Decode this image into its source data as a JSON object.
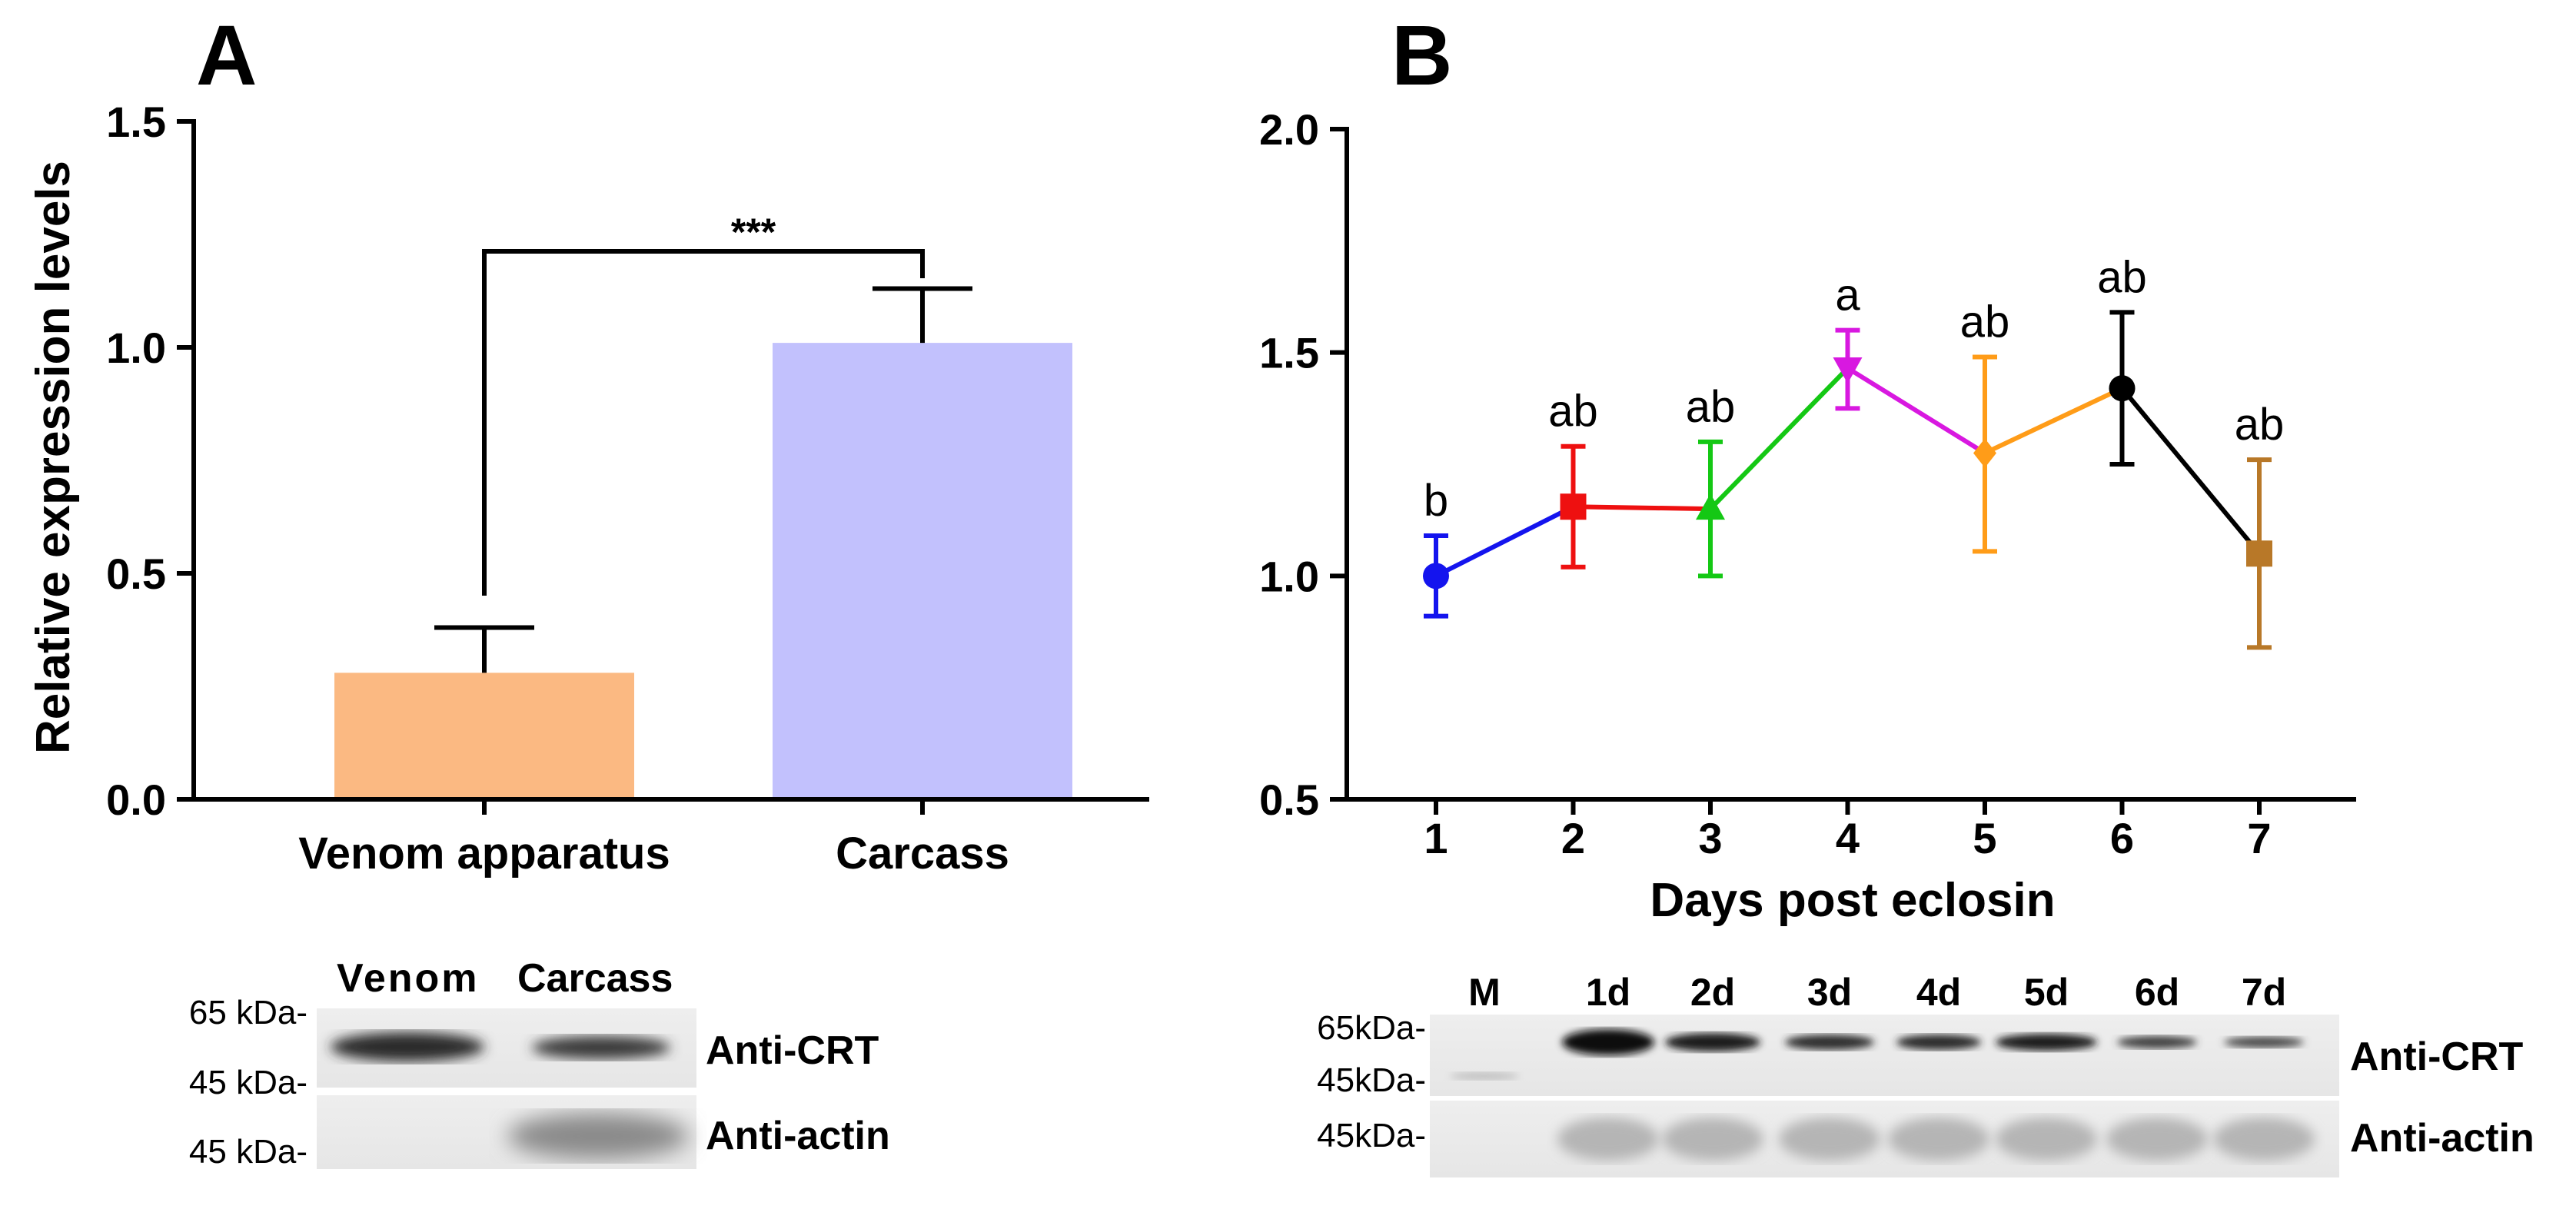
{
  "colors": {
    "bar_venom": "#fbb982",
    "bar_carcass": "#c2c1fd",
    "axis": "#000000",
    "series_segments": [
      "#1414ee",
      "#ee1010",
      "#14c814",
      "#d818e0",
      "#ff9c18",
      "#000000",
      "#b87828"
    ]
  },
  "panel_a": {
    "label": "A",
    "significance": "***",
    "blot": {
      "lane_labels": [
        "Venom",
        "Carcass"
      ],
      "markers_crt": [
        "65 kDa-",
        "45 kDa-"
      ],
      "markers_actin": [
        "45 kDa-"
      ],
      "row_labels": [
        "Anti-CRT",
        "Anti-actin"
      ]
    }
  },
  "panel_b": {
    "label": "B",
    "blot": {
      "lane_labels": [
        "M",
        "1d",
        "2d",
        "3d",
        "4d",
        "5d",
        "6d",
        "7d"
      ],
      "markers_crt": [
        "65kDa-",
        "45kDa-"
      ],
      "markers_actin": [
        "45kDa-"
      ],
      "row_labels": [
        "Anti-CRT",
        "Anti-actin"
      ]
    }
  },
  "chart_data": [
    {
      "type": "bar",
      "title": "",
      "xlabel": "",
      "ylabel": "Relative expression levels",
      "categories": [
        "Venom apparatus",
        "Carcass"
      ],
      "values": [
        0.28,
        1.01
      ],
      "errors": [
        0.1,
        0.12
      ],
      "ylim": [
        0,
        1.5
      ],
      "yticks": [
        "0.0",
        "0.5",
        "1.0",
        "1.5"
      ],
      "annotation": "***"
    },
    {
      "type": "line",
      "title": "",
      "xlabel": "Days post eclosin",
      "ylabel": "",
      "x": [
        "1",
        "2",
        "3",
        "4",
        "5",
        "6",
        "7"
      ],
      "values": [
        1.0,
        1.155,
        1.15,
        1.465,
        1.275,
        1.42,
        1.05
      ],
      "errors_low": [
        0.91,
        1.02,
        1.0,
        1.375,
        1.055,
        1.25,
        0.84
      ],
      "errors_high": [
        1.09,
        1.29,
        1.3,
        1.55,
        1.49,
        1.59,
        1.26
      ],
      "markers": [
        "circle",
        "square",
        "triangle-up",
        "triangle-down",
        "diamond",
        "circle",
        "square"
      ],
      "letters": [
        "b",
        "ab",
        "ab",
        "a",
        "ab",
        "ab",
        "ab"
      ],
      "ylim": [
        0.5,
        2.0
      ],
      "yticks": [
        "0.5",
        "1.0",
        "1.5",
        "2.0"
      ]
    }
  ]
}
